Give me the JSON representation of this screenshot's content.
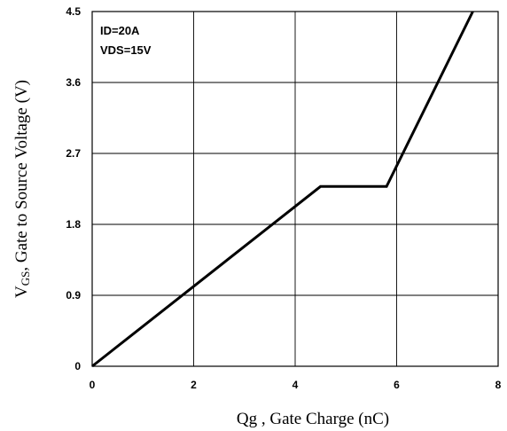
{
  "chart_data": {
    "type": "line",
    "title": "",
    "xlabel": "Qg , Gate Charge (nC)",
    "ylabel_main": "V",
    "ylabel_sub": "GS",
    "ylabel_rest": ", Gate to Source Voltage (V)",
    "xlim": [
      0,
      8
    ],
    "ylim": [
      0,
      4.5
    ],
    "x_ticks": [
      0,
      2,
      4,
      6,
      8
    ],
    "x_tick_labels": [
      "0",
      "2",
      "4",
      "6",
      "8"
    ],
    "y_ticks": [
      0,
      0.9,
      1.8,
      2.7,
      3.6,
      4.5
    ],
    "y_tick_labels": [
      "0",
      "0.9",
      "1.8",
      "2.7",
      "3.6",
      "4.5"
    ],
    "grid": true,
    "annotations": [
      "ID=20A",
      "VDS=15V"
    ],
    "series": [
      {
        "x": [
          0,
          4.5,
          5.8,
          7.5
        ],
        "y": [
          0,
          2.28,
          2.28,
          4.5
        ]
      }
    ],
    "line_color": "#000000"
  }
}
